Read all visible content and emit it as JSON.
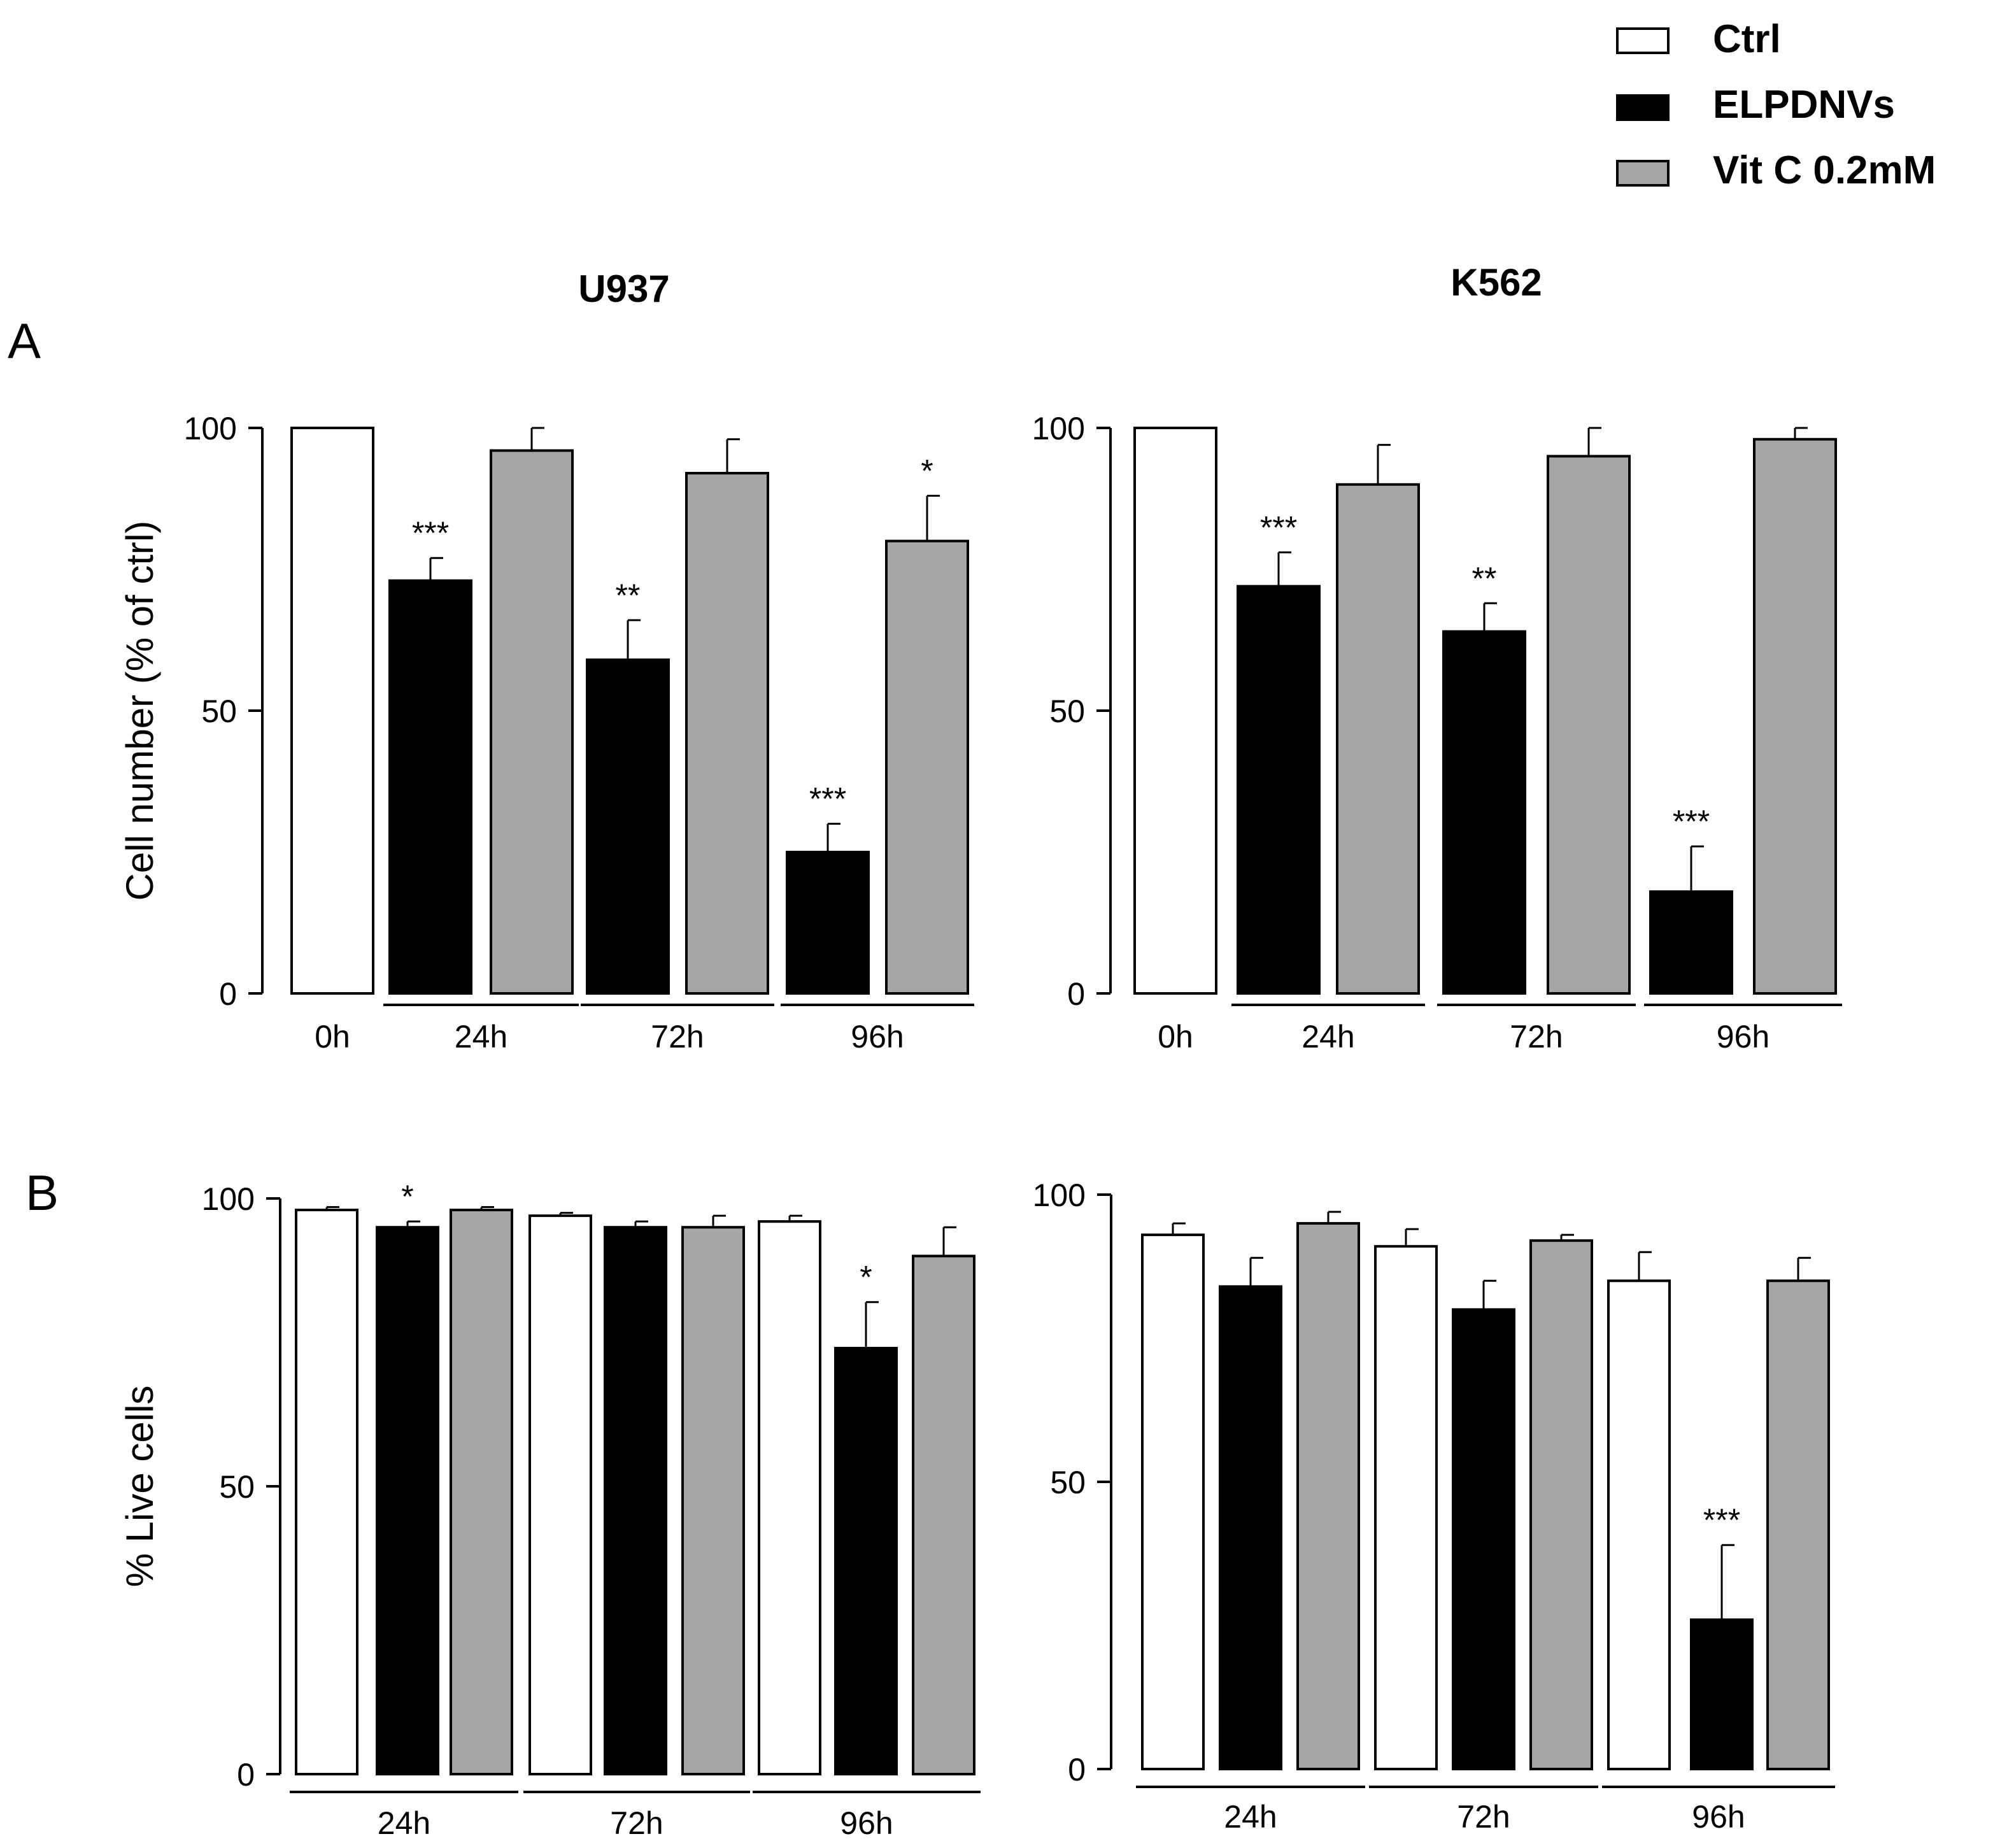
{
  "legend": [
    {
      "label": "Ctrl",
      "color": "#ffffff"
    },
    {
      "label": "ELPDNVs",
      "color": "#000000"
    },
    {
      "label": "Vit C 0.2mM",
      "color": "#a6a6a6"
    }
  ],
  "panel_labels": {
    "a": "A",
    "b": "B"
  },
  "chart_data": [
    {
      "id": "a-u937",
      "type": "bar",
      "title": "U937",
      "ylabel": "Cell number (% of ctrl)",
      "ylim": [
        0,
        100
      ],
      "yticks": [
        "0",
        "50",
        "100"
      ],
      "groups": [
        "0h",
        "24h",
        "72h",
        "96h"
      ],
      "bars": [
        {
          "series": "Ctrl",
          "group": "0h",
          "value": 100,
          "err": 0,
          "sig": ""
        },
        {
          "series": "ELPDNVs",
          "group": "24h",
          "value": 73,
          "err": 4,
          "sig": "***"
        },
        {
          "series": "Vit C 0.2mM",
          "group": "24h",
          "value": 96,
          "err": 4,
          "sig": ""
        },
        {
          "series": "ELPDNVs",
          "group": "72h",
          "value": 59,
          "err": 7,
          "sig": "**"
        },
        {
          "series": "Vit C 0.2mM",
          "group": "72h",
          "value": 92,
          "err": 6,
          "sig": ""
        },
        {
          "series": "ELPDNVs",
          "group": "96h",
          "value": 25,
          "err": 5,
          "sig": "***"
        },
        {
          "series": "Vit C 0.2mM",
          "group": "96h",
          "value": 80,
          "err": 8,
          "sig": "*"
        }
      ]
    },
    {
      "id": "a-k562",
      "type": "bar",
      "title": "K562",
      "ylabel": "",
      "ylim": [
        0,
        100
      ],
      "yticks": [
        "0",
        "50",
        "100"
      ],
      "groups": [
        "0h",
        "24h",
        "72h",
        "96h"
      ],
      "bars": [
        {
          "series": "Ctrl",
          "group": "0h",
          "value": 100,
          "err": 0,
          "sig": ""
        },
        {
          "series": "ELPDNVs",
          "group": "24h",
          "value": 72,
          "err": 6,
          "sig": "***"
        },
        {
          "series": "Vit C 0.2mM",
          "group": "24h",
          "value": 90,
          "err": 7,
          "sig": ""
        },
        {
          "series": "ELPDNVs",
          "group": "72h",
          "value": 64,
          "err": 5,
          "sig": "**"
        },
        {
          "series": "Vit C 0.2mM",
          "group": "72h",
          "value": 95,
          "err": 5,
          "sig": ""
        },
        {
          "series": "ELPDNVs",
          "group": "96h",
          "value": 18,
          "err": 8,
          "sig": "***"
        },
        {
          "series": "Vit C 0.2mM",
          "group": "96h",
          "value": 98,
          "err": 2,
          "sig": ""
        }
      ]
    },
    {
      "id": "b-u937",
      "type": "bar",
      "title": "",
      "ylabel": "% Live cells",
      "ylim": [
        0,
        100
      ],
      "yticks": [
        "0",
        "50",
        "100"
      ],
      "groups": [
        "24h",
        "72h",
        "96h"
      ],
      "bars": [
        {
          "series": "Ctrl",
          "group": "24h",
          "value": 98,
          "err": 0.5,
          "sig": ""
        },
        {
          "series": "ELPDNVs",
          "group": "24h",
          "value": 95,
          "err": 1,
          "sig": "*"
        },
        {
          "series": "Vit C 0.2mM",
          "group": "24h",
          "value": 98,
          "err": 0.5,
          "sig": ""
        },
        {
          "series": "Ctrl",
          "group": "72h",
          "value": 97,
          "err": 0.5,
          "sig": ""
        },
        {
          "series": "ELPDNVs",
          "group": "72h",
          "value": 95,
          "err": 1,
          "sig": ""
        },
        {
          "series": "Vit C 0.2mM",
          "group": "72h",
          "value": 95,
          "err": 2,
          "sig": ""
        },
        {
          "series": "Ctrl",
          "group": "96h",
          "value": 96,
          "err": 1,
          "sig": ""
        },
        {
          "series": "ELPDNVs",
          "group": "96h",
          "value": 74,
          "err": 8,
          "sig": "*"
        },
        {
          "series": "Vit C 0.2mM",
          "group": "96h",
          "value": 90,
          "err": 5,
          "sig": ""
        }
      ]
    },
    {
      "id": "b-k562",
      "type": "bar",
      "title": "",
      "ylabel": "",
      "ylim": [
        0,
        100
      ],
      "yticks": [
        "0",
        "50",
        "100"
      ],
      "groups": [
        "24h",
        "72h",
        "96h"
      ],
      "bars": [
        {
          "series": "Ctrl",
          "group": "24h",
          "value": 93,
          "err": 2,
          "sig": ""
        },
        {
          "series": "ELPDNVs",
          "group": "24h",
          "value": 84,
          "err": 5,
          "sig": ""
        },
        {
          "series": "Vit C 0.2mM",
          "group": "24h",
          "value": 95,
          "err": 2,
          "sig": ""
        },
        {
          "series": "Ctrl",
          "group": "72h",
          "value": 91,
          "err": 3,
          "sig": ""
        },
        {
          "series": "ELPDNVs",
          "group": "72h",
          "value": 80,
          "err": 5,
          "sig": ""
        },
        {
          "series": "Vit C 0.2mM",
          "group": "72h",
          "value": 92,
          "err": 1,
          "sig": ""
        },
        {
          "series": "Ctrl",
          "group": "96h",
          "value": 85,
          "err": 5,
          "sig": ""
        },
        {
          "series": "ELPDNVs",
          "group": "96h",
          "value": 26,
          "err": 13,
          "sig": "***"
        },
        {
          "series": "Vit C 0.2mM",
          "group": "96h",
          "value": 85,
          "err": 4,
          "sig": ""
        }
      ]
    }
  ]
}
